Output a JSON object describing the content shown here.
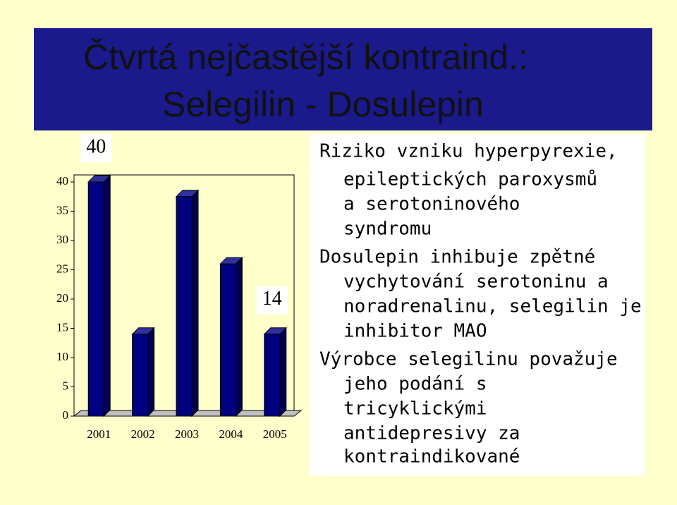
{
  "slide": {
    "title_lines": [
      "Čtvrtá nejčastější kontraind.:",
      "Selegilin - Dosulepin"
    ],
    "notes": [
      {
        "lines": [
          "Riziko vzniku hyperpyrexie,",
          "epileptických paroxysmů",
          "a serotoninového",
          "syndromu"
        ]
      },
      {
        "lines": [
          "Dosulepin inhibuje zpětné",
          "vychytování serotoninu a",
          "noradrenalinu, selegilin je",
          "inhibitor MAO"
        ]
      },
      {
        "lines": [
          "Výrobce selegilinu považuje",
          "jeho podání s",
          "tricyklickými",
          "antidepresivy za",
          "kontraindikované"
        ]
      }
    ]
  },
  "chart_data": {
    "type": "bar",
    "categories": [
      "2001",
      "2002",
      "2003",
      "2004",
      "2005"
    ],
    "values": [
      40,
      14,
      37.5,
      26,
      14
    ],
    "value_labels": [
      "40",
      null,
      null,
      null,
      "14"
    ],
    "color": "#000080",
    "ylim": [
      0,
      40
    ],
    "yticks": [
      0,
      5,
      10,
      15,
      20,
      25,
      30,
      35,
      40
    ]
  }
}
